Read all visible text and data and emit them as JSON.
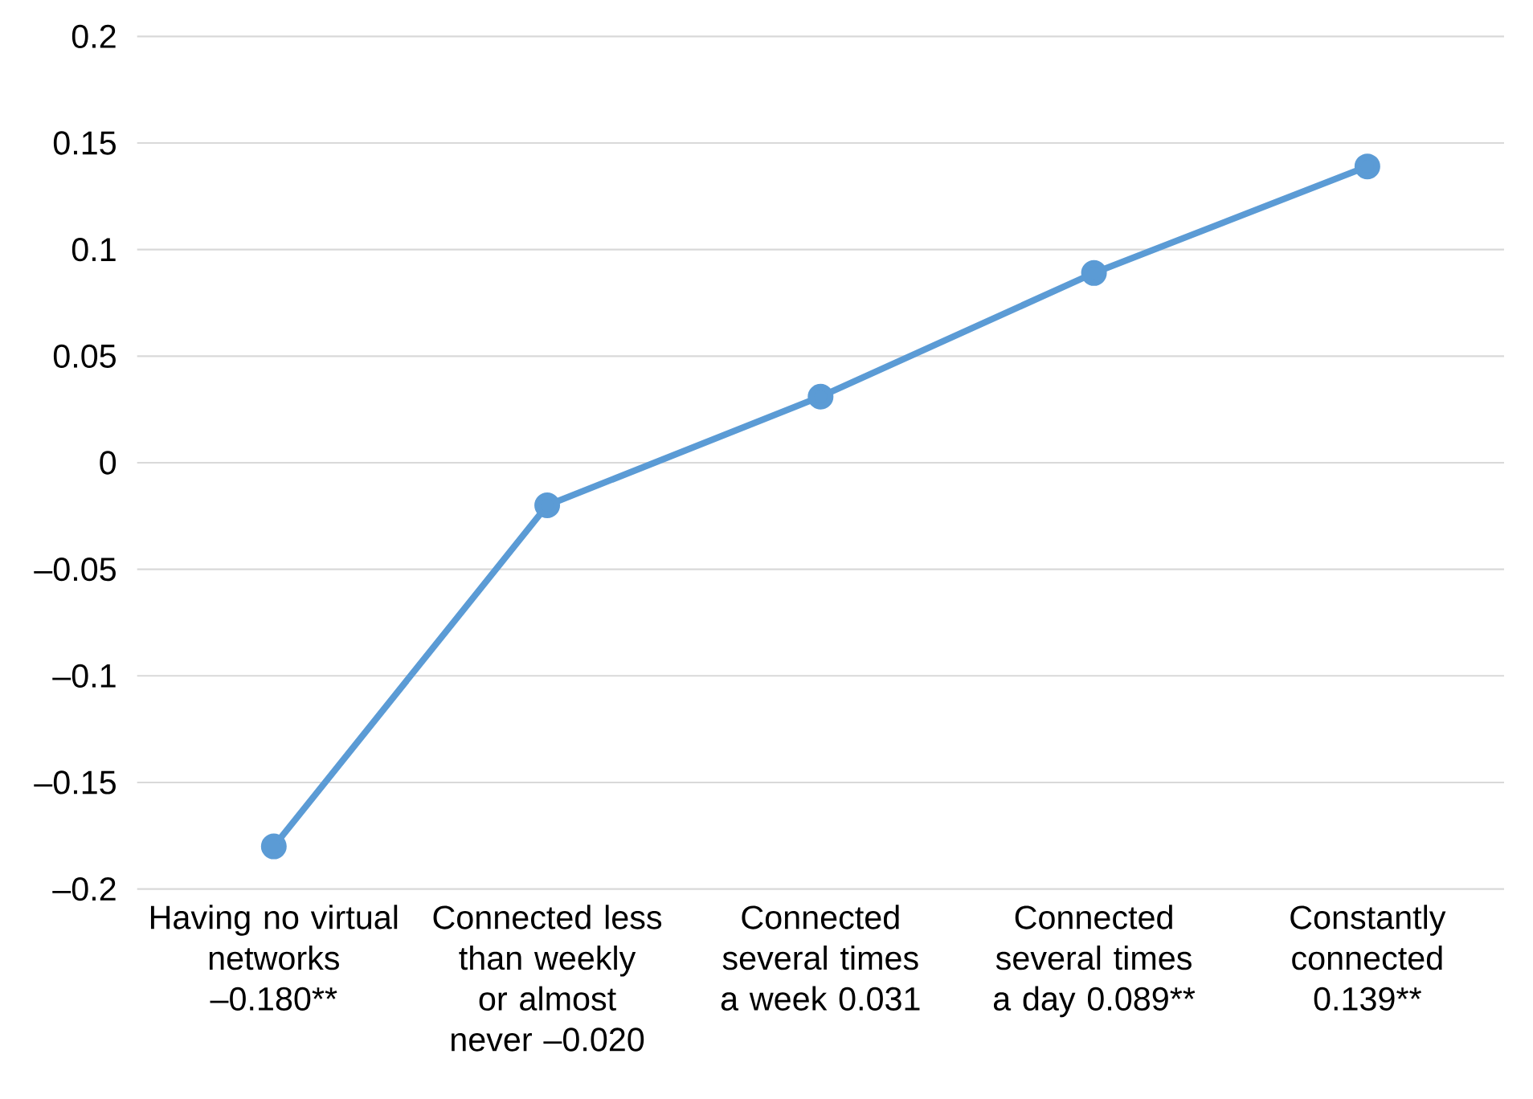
{
  "chart_data": {
    "type": "line",
    "categories": [
      "Having no virtual networks –0.180**",
      "Connected less than weekly or almost never –0.020",
      "Connected several times a week 0.031",
      "Connected several times a day 0.089**",
      "Constantly connected 0.139**"
    ],
    "series": [
      {
        "color": "#5b9bd5",
        "values": [
          -0.18,
          -0.02,
          0.031,
          0.089,
          0.139
        ]
      }
    ],
    "ylim": [
      -0.2,
      0.2
    ],
    "yticks": [
      {
        "value": -0.2,
        "label": "–0.2"
      },
      {
        "value": -0.15,
        "label": "–0.15"
      },
      {
        "value": -0.1,
        "label": "–0.1"
      },
      {
        "value": -0.05,
        "label": "–0.05"
      },
      0,
      0.05,
      0.1,
      0.15,
      0.2
    ],
    "grid": "y",
    "marker": "circle",
    "line_style": "solid"
  }
}
